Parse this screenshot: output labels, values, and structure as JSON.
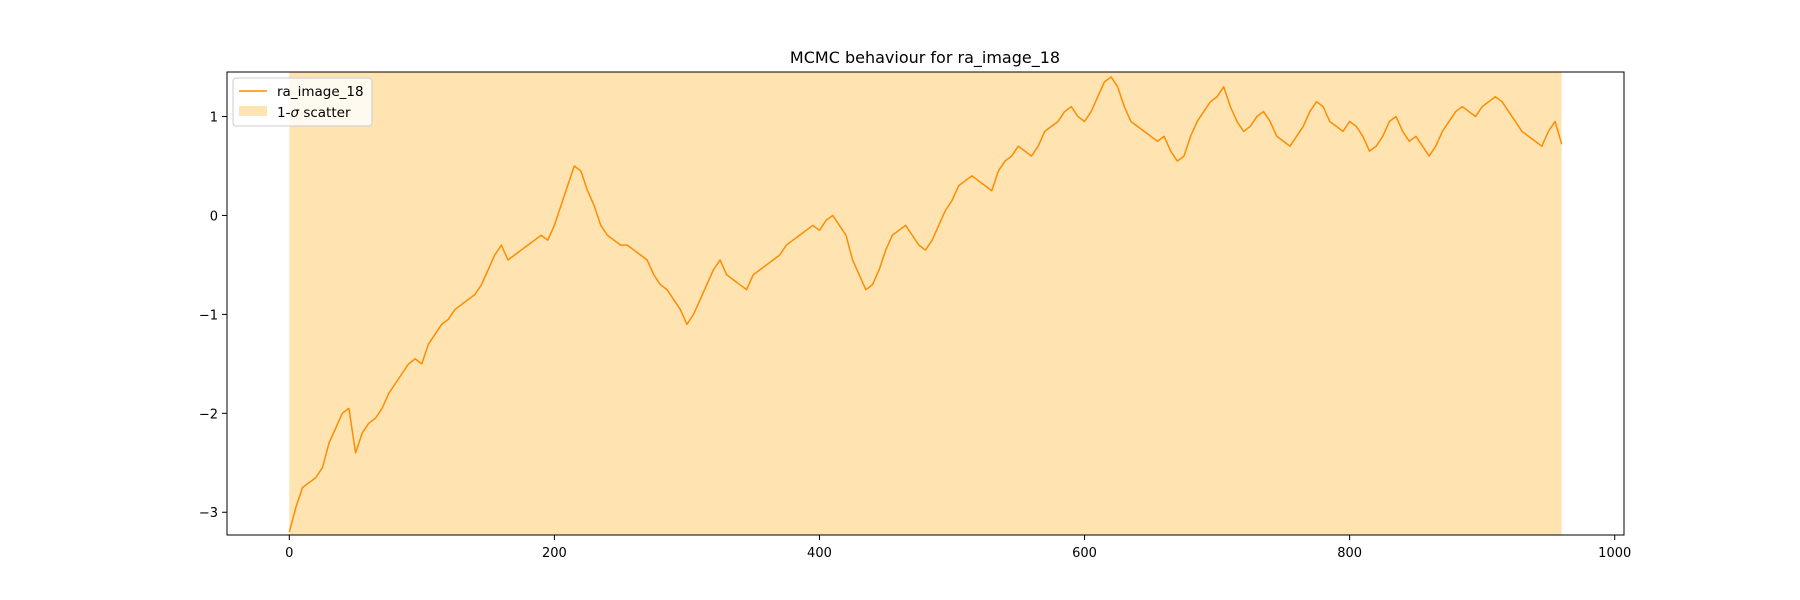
{
  "chart_data": {
    "type": "line",
    "title": "MCMC behaviour for ra_image_18",
    "xlabel": "",
    "ylabel": "",
    "xlim": [
      -47,
      1007
    ],
    "ylim": [
      -3.23,
      1.45
    ],
    "xticks": [
      0,
      200,
      400,
      600,
      800,
      1000
    ],
    "yticks": [
      -3,
      -2,
      -1,
      0,
      1
    ],
    "xtick_labels": [
      "0",
      "200",
      "400",
      "600",
      "800",
      "1000"
    ],
    "ytick_labels": [
      "−3",
      "−2",
      "−1",
      "0",
      "1"
    ],
    "grid": false,
    "legend_position": "upper-left",
    "series": [
      {
        "name": "ra_image_18",
        "color": "#ff8c00",
        "x": [
          0,
          5,
          10,
          15,
          20,
          25,
          30,
          35,
          40,
          45,
          50,
          55,
          60,
          65,
          70,
          75,
          80,
          85,
          90,
          95,
          100,
          105,
          110,
          115,
          120,
          125,
          130,
          135,
          140,
          145,
          150,
          155,
          160,
          165,
          170,
          175,
          180,
          185,
          190,
          195,
          200,
          205,
          210,
          215,
          220,
          225,
          230,
          235,
          240,
          245,
          250,
          255,
          260,
          265,
          270,
          275,
          280,
          285,
          290,
          295,
          300,
          305,
          310,
          315,
          320,
          325,
          330,
          335,
          340,
          345,
          350,
          355,
          360,
          365,
          370,
          375,
          380,
          385,
          390,
          395,
          400,
          405,
          410,
          415,
          420,
          425,
          430,
          435,
          440,
          445,
          450,
          455,
          460,
          465,
          470,
          475,
          480,
          485,
          490,
          495,
          500,
          505,
          510,
          515,
          520,
          525,
          530,
          535,
          540,
          545,
          550,
          555,
          560,
          565,
          570,
          575,
          580,
          585,
          590,
          595,
          600,
          605,
          610,
          615,
          620,
          625,
          630,
          635,
          640,
          645,
          650,
          655,
          660,
          665,
          670,
          675,
          680,
          685,
          690,
          695,
          700,
          705,
          710,
          715,
          720,
          725,
          730,
          735,
          740,
          745,
          750,
          755,
          760,
          765,
          770,
          775,
          780,
          785,
          790,
          795,
          800,
          805,
          810,
          815,
          820,
          825,
          830,
          835,
          840,
          845,
          850,
          855,
          860,
          865,
          870,
          875,
          880,
          885,
          890,
          895,
          900,
          905,
          910,
          915,
          920,
          925,
          930,
          935,
          940,
          945,
          950,
          955,
          960
        ],
        "y": [
          -3.2,
          -2.95,
          -2.75,
          -2.7,
          -2.65,
          -2.55,
          -2.3,
          -2.15,
          -2.0,
          -1.95,
          -2.4,
          -2.2,
          -2.1,
          -2.05,
          -1.95,
          -1.8,
          -1.7,
          -1.6,
          -1.5,
          -1.45,
          -1.5,
          -1.3,
          -1.2,
          -1.1,
          -1.05,
          -0.95,
          -0.9,
          -0.85,
          -0.8,
          -0.7,
          -0.55,
          -0.4,
          -0.3,
          -0.45,
          -0.4,
          -0.35,
          -0.3,
          -0.25,
          -0.2,
          -0.25,
          -0.1,
          0.1,
          0.3,
          0.5,
          0.45,
          0.25,
          0.1,
          -0.1,
          -0.2,
          -0.25,
          -0.3,
          -0.3,
          -0.35,
          -0.4,
          -0.45,
          -0.6,
          -0.7,
          -0.75,
          -0.85,
          -0.95,
          -1.1,
          -1.0,
          -0.85,
          -0.7,
          -0.55,
          -0.45,
          -0.6,
          -0.65,
          -0.7,
          -0.75,
          -0.6,
          -0.55,
          -0.5,
          -0.45,
          -0.4,
          -0.3,
          -0.25,
          -0.2,
          -0.15,
          -0.1,
          -0.15,
          -0.05,
          0.0,
          -0.1,
          -0.2,
          -0.45,
          -0.6,
          -0.75,
          -0.7,
          -0.55,
          -0.35,
          -0.2,
          -0.15,
          -0.1,
          -0.2,
          -0.3,
          -0.35,
          -0.25,
          -0.1,
          0.05,
          0.15,
          0.3,
          0.35,
          0.4,
          0.35,
          0.3,
          0.25,
          0.45,
          0.55,
          0.6,
          0.7,
          0.65,
          0.6,
          0.7,
          0.85,
          0.9,
          0.95,
          1.05,
          1.1,
          1.0,
          0.95,
          1.05,
          1.2,
          1.35,
          1.4,
          1.3,
          1.1,
          0.95,
          0.9,
          0.85,
          0.8,
          0.75,
          0.8,
          0.65,
          0.55,
          0.6,
          0.8,
          0.95,
          1.05,
          1.15,
          1.2,
          1.3,
          1.1,
          0.95,
          0.85,
          0.9,
          1.0,
          1.05,
          0.95,
          0.8,
          0.75,
          0.7,
          0.8,
          0.9,
          1.05,
          1.15,
          1.1,
          0.95,
          0.9,
          0.85,
          0.95,
          0.9,
          0.8,
          0.65,
          0.7,
          0.8,
          0.95,
          1.0,
          0.85,
          0.75,
          0.8,
          0.7,
          0.6,
          0.7,
          0.85,
          0.95,
          1.05,
          1.1,
          1.05,
          1.0,
          1.1,
          1.15,
          1.2,
          1.15,
          1.05,
          0.95,
          0.85,
          0.8,
          0.75,
          0.7,
          0.85,
          0.95,
          0.72
        ]
      }
    ],
    "band": {
      "name": "1-σ scatter",
      "color": "#ffa500",
      "opacity": 0.3,
      "x_range": [
        0,
        960
      ],
      "y_range": [
        -3.23,
        1.45
      ]
    },
    "legend": [
      {
        "prefix": "",
        "italic": "",
        "suffix": "ra_image_18"
      },
      {
        "prefix": "1-",
        "italic": "σ",
        "suffix": " scatter"
      }
    ]
  }
}
